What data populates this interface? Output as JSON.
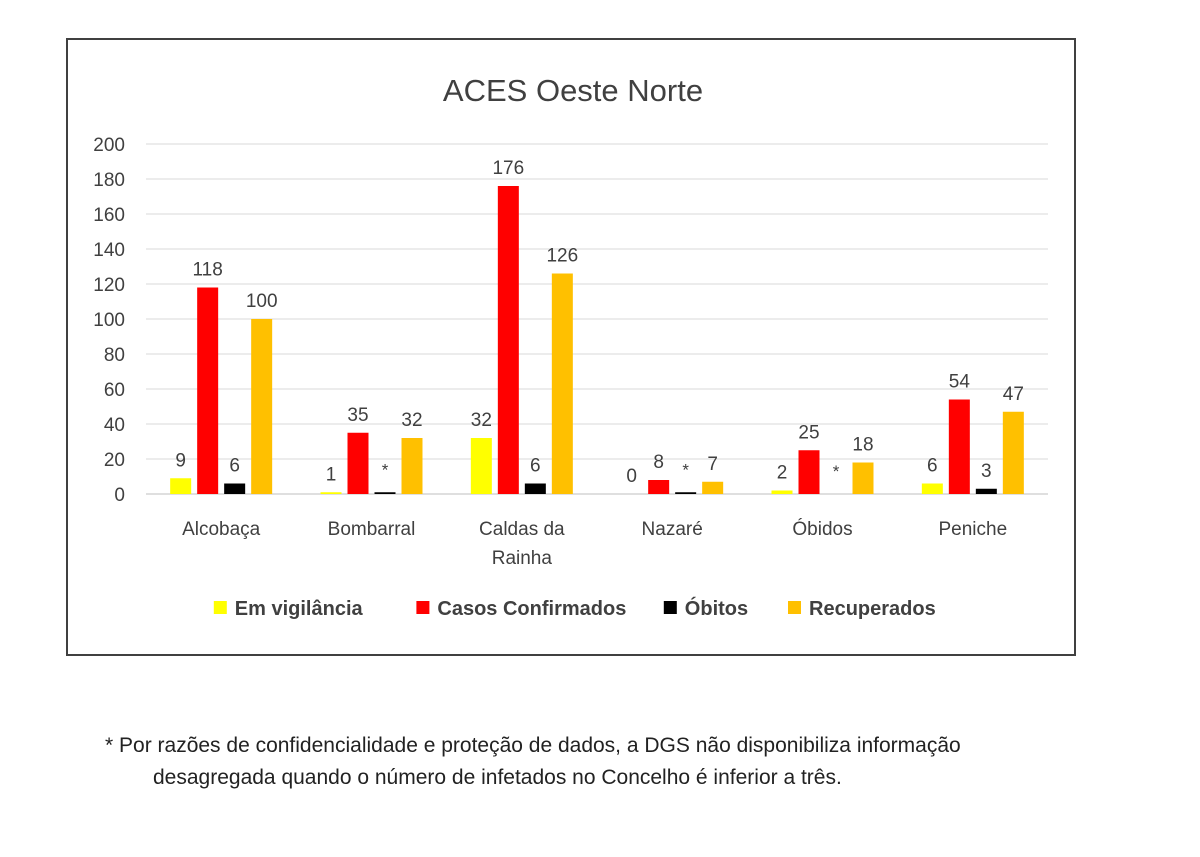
{
  "chart_data": {
    "type": "bar",
    "title": "ACES Oeste Norte",
    "categories": [
      "Alcobaça",
      "Bombarral",
      "Caldas da Rainha",
      "Nazaré",
      "Óbidos",
      "Peniche"
    ],
    "category_lines": [
      [
        "Alcobaça"
      ],
      [
        "Bombarral"
      ],
      [
        "Caldas da",
        "Rainha"
      ],
      [
        "Nazaré"
      ],
      [
        "Óbidos"
      ],
      [
        "Peniche"
      ]
    ],
    "series": [
      {
        "name": "Em vigilância",
        "color": "#ffff00",
        "values": [
          9,
          1,
          32,
          0,
          2,
          6
        ],
        "labels": [
          "9",
          "1",
          "32",
          "0",
          "2",
          "6"
        ]
      },
      {
        "name": "Casos Confirmados",
        "color": "#ff0000",
        "values": [
          118,
          35,
          176,
          8,
          25,
          54
        ],
        "labels": [
          "118",
          "35",
          "176",
          "8",
          "25",
          "54"
        ]
      },
      {
        "name": "Óbitos",
        "color": "#000000",
        "values": [
          6,
          1,
          6,
          1,
          null,
          3
        ],
        "labels": [
          "6",
          "*",
          "6",
          "*",
          "*",
          "3"
        ]
      },
      {
        "name": "Recuperados",
        "color": "#ffc000",
        "values": [
          100,
          32,
          126,
          7,
          18,
          47
        ],
        "labels": [
          "100",
          "32",
          "126",
          "7",
          "18",
          "47"
        ]
      }
    ],
    "ylim": [
      0,
      200
    ],
    "yticks": [
      0,
      20,
      40,
      60,
      80,
      100,
      120,
      140,
      160,
      180,
      200
    ],
    "grid": true,
    "legend": "bottom"
  },
  "footnote": {
    "line1": "* Por razões de confidencialidade e proteção de dados, a DGS não disponibiliza informação",
    "line2": "desagregada quando o número de infetados no Concelho é inferior a três."
  }
}
